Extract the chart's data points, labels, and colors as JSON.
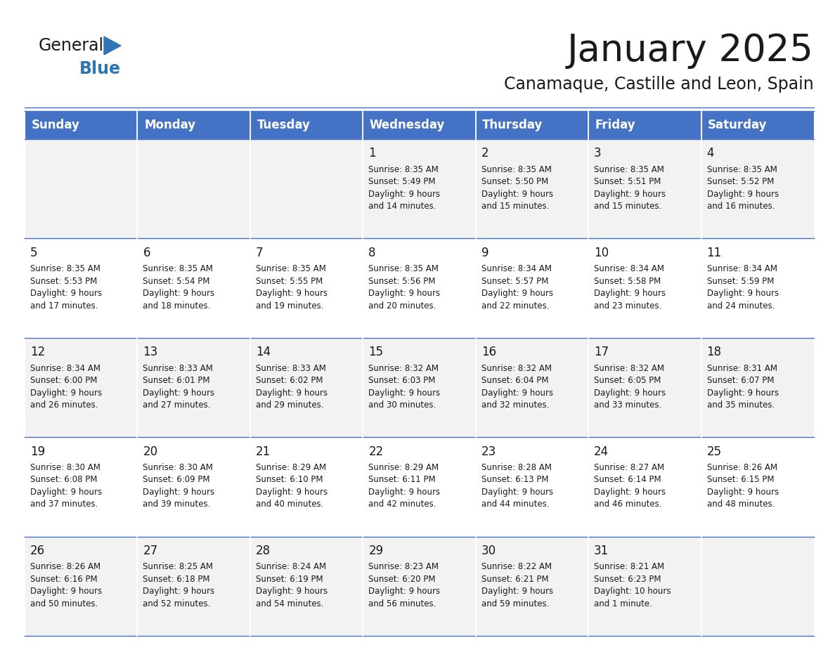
{
  "title": "January 2025",
  "subtitle": "Canamaque, Castille and Leon, Spain",
  "header_bg": "#4472C4",
  "header_text_color": "#FFFFFF",
  "cell_bg_light": "#F2F2F2",
  "cell_bg_white": "#FFFFFF",
  "separator_color": "#4472C4",
  "text_color": "#1a1a1a",
  "days_of_week": [
    "Sunday",
    "Monday",
    "Tuesday",
    "Wednesday",
    "Thursday",
    "Friday",
    "Saturday"
  ],
  "weeks": [
    [
      {
        "day": 0,
        "text": ""
      },
      {
        "day": 0,
        "text": ""
      },
      {
        "day": 0,
        "text": ""
      },
      {
        "day": 1,
        "text": "Sunrise: 8:35 AM\nSunset: 5:49 PM\nDaylight: 9 hours\nand 14 minutes."
      },
      {
        "day": 2,
        "text": "Sunrise: 8:35 AM\nSunset: 5:50 PM\nDaylight: 9 hours\nand 15 minutes."
      },
      {
        "day": 3,
        "text": "Sunrise: 8:35 AM\nSunset: 5:51 PM\nDaylight: 9 hours\nand 15 minutes."
      },
      {
        "day": 4,
        "text": "Sunrise: 8:35 AM\nSunset: 5:52 PM\nDaylight: 9 hours\nand 16 minutes."
      }
    ],
    [
      {
        "day": 5,
        "text": "Sunrise: 8:35 AM\nSunset: 5:53 PM\nDaylight: 9 hours\nand 17 minutes."
      },
      {
        "day": 6,
        "text": "Sunrise: 8:35 AM\nSunset: 5:54 PM\nDaylight: 9 hours\nand 18 minutes."
      },
      {
        "day": 7,
        "text": "Sunrise: 8:35 AM\nSunset: 5:55 PM\nDaylight: 9 hours\nand 19 minutes."
      },
      {
        "day": 8,
        "text": "Sunrise: 8:35 AM\nSunset: 5:56 PM\nDaylight: 9 hours\nand 20 minutes."
      },
      {
        "day": 9,
        "text": "Sunrise: 8:34 AM\nSunset: 5:57 PM\nDaylight: 9 hours\nand 22 minutes."
      },
      {
        "day": 10,
        "text": "Sunrise: 8:34 AM\nSunset: 5:58 PM\nDaylight: 9 hours\nand 23 minutes."
      },
      {
        "day": 11,
        "text": "Sunrise: 8:34 AM\nSunset: 5:59 PM\nDaylight: 9 hours\nand 24 minutes."
      }
    ],
    [
      {
        "day": 12,
        "text": "Sunrise: 8:34 AM\nSunset: 6:00 PM\nDaylight: 9 hours\nand 26 minutes."
      },
      {
        "day": 13,
        "text": "Sunrise: 8:33 AM\nSunset: 6:01 PM\nDaylight: 9 hours\nand 27 minutes."
      },
      {
        "day": 14,
        "text": "Sunrise: 8:33 AM\nSunset: 6:02 PM\nDaylight: 9 hours\nand 29 minutes."
      },
      {
        "day": 15,
        "text": "Sunrise: 8:32 AM\nSunset: 6:03 PM\nDaylight: 9 hours\nand 30 minutes."
      },
      {
        "day": 16,
        "text": "Sunrise: 8:32 AM\nSunset: 6:04 PM\nDaylight: 9 hours\nand 32 minutes."
      },
      {
        "day": 17,
        "text": "Sunrise: 8:32 AM\nSunset: 6:05 PM\nDaylight: 9 hours\nand 33 minutes."
      },
      {
        "day": 18,
        "text": "Sunrise: 8:31 AM\nSunset: 6:07 PM\nDaylight: 9 hours\nand 35 minutes."
      }
    ],
    [
      {
        "day": 19,
        "text": "Sunrise: 8:30 AM\nSunset: 6:08 PM\nDaylight: 9 hours\nand 37 minutes."
      },
      {
        "day": 20,
        "text": "Sunrise: 8:30 AM\nSunset: 6:09 PM\nDaylight: 9 hours\nand 39 minutes."
      },
      {
        "day": 21,
        "text": "Sunrise: 8:29 AM\nSunset: 6:10 PM\nDaylight: 9 hours\nand 40 minutes."
      },
      {
        "day": 22,
        "text": "Sunrise: 8:29 AM\nSunset: 6:11 PM\nDaylight: 9 hours\nand 42 minutes."
      },
      {
        "day": 23,
        "text": "Sunrise: 8:28 AM\nSunset: 6:13 PM\nDaylight: 9 hours\nand 44 minutes."
      },
      {
        "day": 24,
        "text": "Sunrise: 8:27 AM\nSunset: 6:14 PM\nDaylight: 9 hours\nand 46 minutes."
      },
      {
        "day": 25,
        "text": "Sunrise: 8:26 AM\nSunset: 6:15 PM\nDaylight: 9 hours\nand 48 minutes."
      }
    ],
    [
      {
        "day": 26,
        "text": "Sunrise: 8:26 AM\nSunset: 6:16 PM\nDaylight: 9 hours\nand 50 minutes."
      },
      {
        "day": 27,
        "text": "Sunrise: 8:25 AM\nSunset: 6:18 PM\nDaylight: 9 hours\nand 52 minutes."
      },
      {
        "day": 28,
        "text": "Sunrise: 8:24 AM\nSunset: 6:19 PM\nDaylight: 9 hours\nand 54 minutes."
      },
      {
        "day": 29,
        "text": "Sunrise: 8:23 AM\nSunset: 6:20 PM\nDaylight: 9 hours\nand 56 minutes."
      },
      {
        "day": 30,
        "text": "Sunrise: 8:22 AM\nSunset: 6:21 PM\nDaylight: 9 hours\nand 59 minutes."
      },
      {
        "day": 31,
        "text": "Sunrise: 8:21 AM\nSunset: 6:23 PM\nDaylight: 10 hours\nand 1 minute."
      },
      {
        "day": 0,
        "text": ""
      }
    ]
  ],
  "logo_text_general": "General",
  "logo_text_blue": "Blue",
  "logo_color_general": "#1a1a1a",
  "logo_color_blue": "#2E75B6",
  "logo_triangle_color": "#2E75B6",
  "title_fontsize": 38,
  "subtitle_fontsize": 17,
  "header_fontsize": 12,
  "day_number_fontsize": 12,
  "cell_text_fontsize": 8.5
}
